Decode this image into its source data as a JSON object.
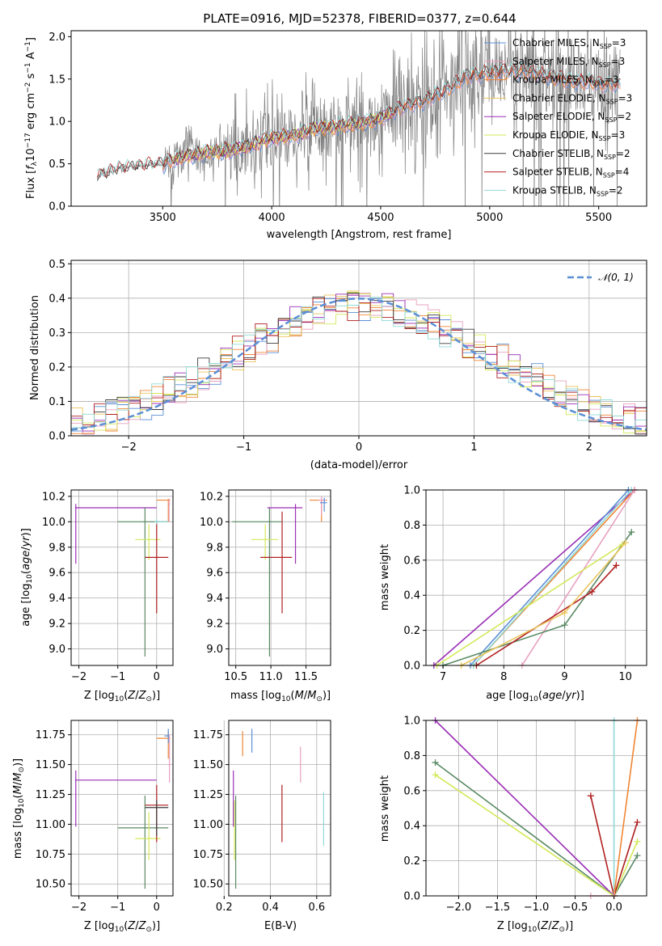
{
  "title": "PLATE=0916, MJD=52378, FIBERID=0377, z=0.644",
  "colors": {
    "chabrier_miles": "#5b8fd6",
    "salpeter_miles": "#e8a0bf",
    "kroupa_miles": "#ef8636",
    "chabrier_elodie": "#e9c45a",
    "salpeter_elodie": "#9a2fb5",
    "kroupa_elodie": "#d4e85a",
    "chabrier_stelib": "#3c3c3c",
    "salpeter_stelib": "#b01f1f",
    "kroupa_stelib": "#8fd9d6",
    "data": "#808080",
    "gaussian": "#5b8fd6",
    "zage_green": "#5a8a64"
  },
  "chart_data": [
    {
      "id": "spectrum",
      "type": "line",
      "xlabel": "wavelength [Angstrom, rest frame]",
      "xticks": [
        "3500",
        "4000",
        "4500",
        "5000",
        "5500"
      ],
      "yticks": [
        "0.0",
        "0.5",
        "1.0",
        "1.5",
        "2.0"
      ],
      "xlim": [
        3080,
        5720
      ],
      "ylim": [
        0,
        2.07
      ],
      "legend": [
        "Chabrier MILES, N",
        "Salpeter MILES, N",
        "Kroupa MILES, N",
        "Chabrier ELODIE, N",
        "Salpeter ELODIE, N",
        "Kroupa ELODIE, N",
        "Chabrier STELIB, N",
        "Salpeter STELIB, N",
        "Kroupa STELIB, N"
      ],
      "legend_n": [
        "=3",
        "=3",
        "=3",
        "=3",
        "=2",
        "=3",
        "=2",
        "=4",
        "=2"
      ],
      "legend_sub": "SSP",
      "continuum": [
        [
          3200,
          0.35
        ],
        [
          3300,
          0.44
        ],
        [
          3400,
          0.48
        ],
        [
          3500,
          0.5
        ],
        [
          3600,
          0.6
        ],
        [
          3700,
          0.64
        ],
        [
          3800,
          0.66
        ],
        [
          3900,
          0.72
        ],
        [
          4000,
          0.82
        ],
        [
          4100,
          0.84
        ],
        [
          4200,
          0.92
        ],
        [
          4300,
          0.95
        ],
        [
          4400,
          0.98
        ],
        [
          4500,
          1.05
        ],
        [
          4600,
          1.18
        ],
        [
          4700,
          1.25
        ],
        [
          4800,
          1.38
        ],
        [
          4900,
          1.55
        ],
        [
          5000,
          1.58
        ],
        [
          5100,
          1.6
        ],
        [
          5200,
          1.58
        ],
        [
          5300,
          1.52
        ],
        [
          5400,
          1.48
        ],
        [
          5500,
          1.46
        ],
        [
          5600,
          1.44
        ]
      ],
      "legend_position": "upper right"
    },
    {
      "id": "residuals",
      "type": "line",
      "xlabel": "(data-model)/error",
      "ylabel": "Normed distribution",
      "xticks": [
        "−2",
        "−1",
        "0",
        "1",
        "2"
      ],
      "yticks": [
        "0.0",
        "0.1",
        "0.2",
        "0.3",
        "0.4",
        "0.5"
      ],
      "xlim": [
        -2.5,
        2.5
      ],
      "ylim": [
        0,
        0.51
      ],
      "legend": [
        "𝒩(0, 1)"
      ],
      "gaussian_sigma": 1,
      "hist_bin_width": 0.1,
      "grid": true
    },
    {
      "id": "z_age",
      "type": "scatter",
      "xlabel": "Z [log",
      "ylabel": "age  [log",
      "xticks": [
        "−2",
        "−1",
        "0"
      ],
      "yticks": [
        "9.0",
        "9.2",
        "9.4",
        "9.6",
        "9.8",
        "10.0",
        "10.2"
      ],
      "xlim": [
        -2.2,
        0.42
      ],
      "ylim": [
        8.87,
        10.25
      ],
      "points": [
        {
          "c": "salpeter_elodie",
          "x": -2.08,
          "xlo": -2.1,
          "xhi": 0.0,
          "y": 10.11,
          "ylo": 9.67,
          "yhi": 10.14
        },
        {
          "c": "zage_green",
          "x": -0.3,
          "xlo": -1.0,
          "xhi": 0.3,
          "y": 10.0,
          "ylo": 8.94,
          "yhi": 10.11
        },
        {
          "c": "kroupa_elodie",
          "x": -0.2,
          "xlo": -0.55,
          "xhi": 0.1,
          "y": 9.86,
          "ylo": 9.7,
          "yhi": 9.98
        },
        {
          "c": "salpeter_stelib",
          "x": 0.0,
          "xlo": -0.3,
          "xhi": 0.3,
          "y": 9.72,
          "ylo": 9.28,
          "yhi": 10.0
        },
        {
          "c": "kroupa_miles",
          "x": 0.3,
          "xlo": 0.0,
          "xhi": 0.35,
          "y": 10.17,
          "ylo": 10.0,
          "yhi": 10.18
        },
        {
          "c": "salpeter_miles",
          "x": 0.32,
          "xlo": 0.3,
          "xhi": 0.35,
          "y": 10.14,
          "ylo": 10.0,
          "yhi": 10.18
        },
        {
          "c": "kroupa_stelib",
          "x": 0.0,
          "xlo": -0.05,
          "xhi": 0.3,
          "y": 10.0,
          "ylo": 9.98,
          "yhi": 10.02
        }
      ],
      "grid": true
    },
    {
      "id": "mass_age",
      "type": "scatter",
      "xlabel": "mass [log",
      "xticks": [
        "10.5",
        "11.0",
        "11.5"
      ],
      "yticks": [
        "9.0",
        "9.2",
        "9.4",
        "9.6",
        "9.8",
        "10.0",
        "10.2"
      ],
      "xlim": [
        10.4,
        11.85
      ],
      "ylim": [
        8.87,
        10.25
      ],
      "points": [
        {
          "c": "zage_green",
          "x": 10.98,
          "xlo": 10.45,
          "xhi": 11.15,
          "y": 10.0,
          "ylo": 8.94,
          "yhi": 10.11
        },
        {
          "c": "kroupa_elodie",
          "x": 10.92,
          "xlo": 10.72,
          "xhi": 11.1,
          "y": 9.86,
          "ylo": 9.7,
          "yhi": 9.98
        },
        {
          "c": "salpeter_stelib",
          "x": 11.16,
          "xlo": 10.85,
          "xhi": 11.3,
          "y": 9.72,
          "ylo": 9.28,
          "yhi": 10.08
        },
        {
          "c": "salpeter_elodie",
          "x": 11.35,
          "xlo": 10.95,
          "xhi": 11.45,
          "y": 10.11,
          "ylo": 9.67,
          "yhi": 10.14
        },
        {
          "c": "kroupa_miles",
          "x": 11.72,
          "xlo": 11.55,
          "xhi": 11.8,
          "y": 10.17,
          "ylo": 10.0,
          "yhi": 10.18
        },
        {
          "c": "salpeter_miles",
          "x": 11.72,
          "xlo": 11.68,
          "xhi": 11.78,
          "y": 10.17,
          "ylo": 10.05,
          "yhi": 10.2
        },
        {
          "c": "chabrier_miles",
          "x": 11.76,
          "xlo": 11.7,
          "xhi": 11.8,
          "y": 10.15,
          "ylo": 10.08,
          "yhi": 10.19
        }
      ],
      "grid": true
    },
    {
      "id": "age_weight",
      "type": "line",
      "xlabel": "age  [log",
      "ylabel": "mass weight",
      "xticks": [
        "7",
        "8",
        "9",
        "10"
      ],
      "yticks": [
        "0.0",
        "0.2",
        "0.4",
        "0.6",
        "0.8",
        "1.0"
      ],
      "xlim": [
        6.72,
        10.35
      ],
      "ylim": [
        0,
        1.0
      ],
      "lines": [
        {
          "c": "salpeter_elodie",
          "pts": [
            [
              6.85,
              0.0
            ],
            [
              10.15,
              1.0
            ]
          ]
        },
        {
          "c": "chabrier_miles",
          "pts": [
            [
              7.45,
              0.0
            ],
            [
              10.05,
              1.0
            ]
          ]
        },
        {
          "c": "kroupa_miles",
          "pts": [
            [
              7.5,
              0.0
            ],
            [
              10.15,
              1.0
            ]
          ]
        },
        {
          "c": "kroupa_stelib",
          "pts": [
            [
              7.5,
              0.0
            ],
            [
              10.1,
              1.0
            ]
          ]
        },
        {
          "c": "salpeter_miles",
          "pts": [
            [
              8.3,
              0.0
            ],
            [
              10.15,
              1.0
            ]
          ]
        },
        {
          "c": "zage_green",
          "pts": [
            [
              7.0,
              0.0
            ],
            [
              9.0,
              0.23
            ],
            [
              10.1,
              0.76
            ]
          ]
        },
        {
          "c": "kroupa_elodie",
          "pts": [
            [
              6.9,
              0.0
            ],
            [
              9.95,
              0.69
            ]
          ]
        },
        {
          "c": "salpeter_stelib",
          "pts": [
            [
              7.55,
              0.0
            ],
            [
              9.45,
              0.42
            ],
            [
              9.85,
              0.57
            ]
          ]
        },
        {
          "c": "chabrier_elodie",
          "pts": [
            [
              7.3,
              0.0
            ],
            [
              9.0,
              0.3
            ],
            [
              10.0,
              0.7
            ]
          ]
        }
      ],
      "grid": true
    },
    {
      "id": "z_mass",
      "type": "scatter",
      "xlabel": "Z [log",
      "ylabel": "mass [log",
      "xticks": [
        "−2",
        "−1",
        "0"
      ],
      "yticks": [
        "10.50",
        "10.75",
        "11.00",
        "11.25",
        "11.50",
        "11.75"
      ],
      "xlim": [
        -2.2,
        0.42
      ],
      "ylim": [
        10.4,
        11.87
      ],
      "points": [
        {
          "c": "salpeter_elodie",
          "x": -2.08,
          "xlo": -2.1,
          "xhi": 0.0,
          "y": 11.37,
          "ylo": 10.98,
          "yhi": 11.45
        },
        {
          "c": "zage_green",
          "x": -0.3,
          "xlo": -1.0,
          "xhi": 0.3,
          "y": 10.97,
          "ylo": 10.46,
          "yhi": 11.24
        },
        {
          "c": "kroupa_elodie",
          "x": -0.2,
          "xlo": -0.55,
          "xhi": 0.1,
          "y": 10.88,
          "ylo": 10.7,
          "yhi": 11.1
        },
        {
          "c": "salpeter_stelib",
          "x": 0.0,
          "xlo": -0.3,
          "xhi": 0.3,
          "y": 11.16,
          "ylo": 10.85,
          "yhi": 11.33
        },
        {
          "c": "chabrier_stelib",
          "x": 0.0,
          "xlo": -0.3,
          "xhi": 0.3,
          "y": 11.14,
          "ylo": 10.9,
          "yhi": 11.2
        },
        {
          "c": "kroupa_miles",
          "x": 0.3,
          "xlo": 0.0,
          "xhi": 0.35,
          "y": 11.72,
          "ylo": 11.55,
          "yhi": 11.78
        },
        {
          "c": "chabrier_miles",
          "x": 0.3,
          "xlo": 0.2,
          "xhi": 0.33,
          "y": 11.74,
          "ylo": 11.68,
          "yhi": 11.8
        },
        {
          "c": "salpeter_miles",
          "x": 0.33,
          "xlo": 0.3,
          "xhi": 0.36,
          "y": 11.5,
          "ylo": 11.35,
          "yhi": 11.75
        }
      ],
      "grid": true
    },
    {
      "id": "ebv_mass",
      "type": "scatter",
      "xlabel": "E(B-V)",
      "xticks": [
        "0.2",
        "0.4",
        "0.6"
      ],
      "yticks": [
        "10.50",
        "10.75",
        "11.00",
        "11.25",
        "11.50",
        "11.75"
      ],
      "xlim": [
        0.22,
        0.66
      ],
      "ylim": [
        10.4,
        11.87
      ],
      "points": [
        {
          "c": "salpeter_elodie",
          "x": 0.24,
          "ylo": 10.98,
          "yhi": 11.45
        },
        {
          "c": "kroupa_elodie",
          "x": 0.245,
          "ylo": 10.7,
          "yhi": 11.2
        },
        {
          "c": "zage_green",
          "x": 0.25,
          "ylo": 10.46,
          "yhi": 11.24
        },
        {
          "c": "kroupa_miles",
          "x": 0.28,
          "ylo": 11.57,
          "yhi": 11.78
        },
        {
          "c": "chabrier_miles",
          "x": 0.32,
          "ylo": 11.6,
          "yhi": 11.8
        },
        {
          "c": "salpeter_stelib",
          "x": 0.45,
          "ylo": 10.85,
          "yhi": 11.33
        },
        {
          "c": "salpeter_miles",
          "x": 0.53,
          "ylo": 11.35,
          "yhi": 11.65
        },
        {
          "c": "kroupa_stelib",
          "x": 0.63,
          "ylo": 10.82,
          "yhi": 11.27
        }
      ],
      "grid": true
    },
    {
      "id": "z_weight",
      "type": "line",
      "xlabel": "Z [log",
      "ylabel": "mass weight",
      "xticks": [
        "−2.0",
        "−1.5",
        "−1.0",
        "−0.5",
        "0.0"
      ],
      "yticks": [
        "0.0",
        "0.2",
        "0.4",
        "0.6",
        "0.8",
        "1.0"
      ],
      "xlim": [
        -2.42,
        0.42
      ],
      "ylim": [
        0,
        1.0
      ],
      "lines": [
        {
          "c": "salpeter_elodie",
          "pts": [
            [
              -2.3,
              1.0
            ],
            [
              0.0,
              0.0
            ]
          ]
        },
        {
          "c": "zage_green",
          "pts": [
            [
              -2.3,
              0.76
            ],
            [
              0.0,
              0.0
            ],
            [
              0.3,
              0.23
            ]
          ]
        },
        {
          "c": "kroupa_elodie",
          "pts": [
            [
              -2.3,
              0.69
            ],
            [
              0.0,
              0.0
            ],
            [
              0.3,
              0.31
            ]
          ]
        },
        {
          "c": "salpeter_stelib",
          "pts": [
            [
              -0.3,
              0.57
            ],
            [
              0.0,
              0.0
            ],
            [
              0.3,
              0.42
            ]
          ]
        },
        {
          "c": "kroupa_stelib",
          "pts": [
            [
              0.0,
              0.0
            ],
            [
              0.0,
              1.0
            ]
          ]
        },
        {
          "c": "kroupa_miles",
          "pts": [
            [
              0.0,
              0.0
            ],
            [
              0.3,
              1.0
            ]
          ]
        },
        {
          "c": "salpeter_miles",
          "pts": [
            [
              -0.3,
              0.0
            ],
            [
              0.0,
              0.0
            ]
          ]
        }
      ],
      "grid": true
    }
  ]
}
